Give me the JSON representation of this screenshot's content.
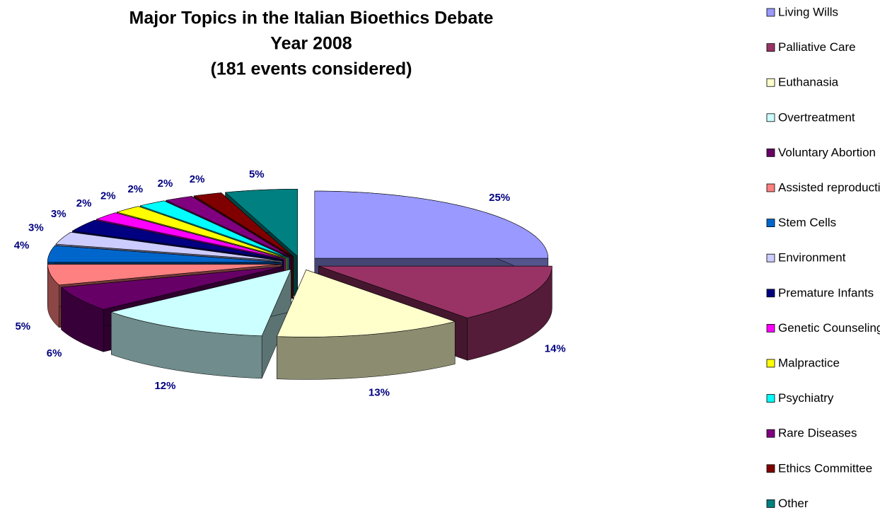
{
  "chart_data": {
    "type": "pie",
    "title": [
      "Major Topics in the Italian Bioethics Debate",
      "Year 2008",
      "(181 events considered)"
    ],
    "categories": [
      "Living Wills",
      "Palliative Care",
      "Euthanasia",
      "Overtreatment",
      "Voluntary Abortion",
      "Assisted reproductive techniques",
      "Stem Cells",
      "Environment",
      "Premature Infants",
      "Genetic Counseling",
      "Malpractice",
      "Psychiatry",
      "Rare Diseases",
      "Ethics Committee",
      "Other"
    ],
    "values": [
      25,
      14,
      13,
      12,
      6,
      5,
      4,
      3,
      3,
      2,
      2,
      2,
      2,
      2,
      5
    ],
    "value_labels": [
      "25%",
      "14%",
      "13%",
      "12%",
      "6%",
      "5%",
      "4%",
      "3%",
      "3%",
      "2%",
      "2%",
      "2%",
      "2%",
      "2%",
      "5%"
    ],
    "colors": [
      "#9999ff",
      "#993366",
      "#ffffcc",
      "#ccffff",
      "#660066",
      "#ff8080",
      "#0066cc",
      "#ccccff",
      "#000080",
      "#ff00ff",
      "#ffff00",
      "#00ffff",
      "#800080",
      "#800000",
      "#008080"
    ],
    "legend": "right"
  }
}
